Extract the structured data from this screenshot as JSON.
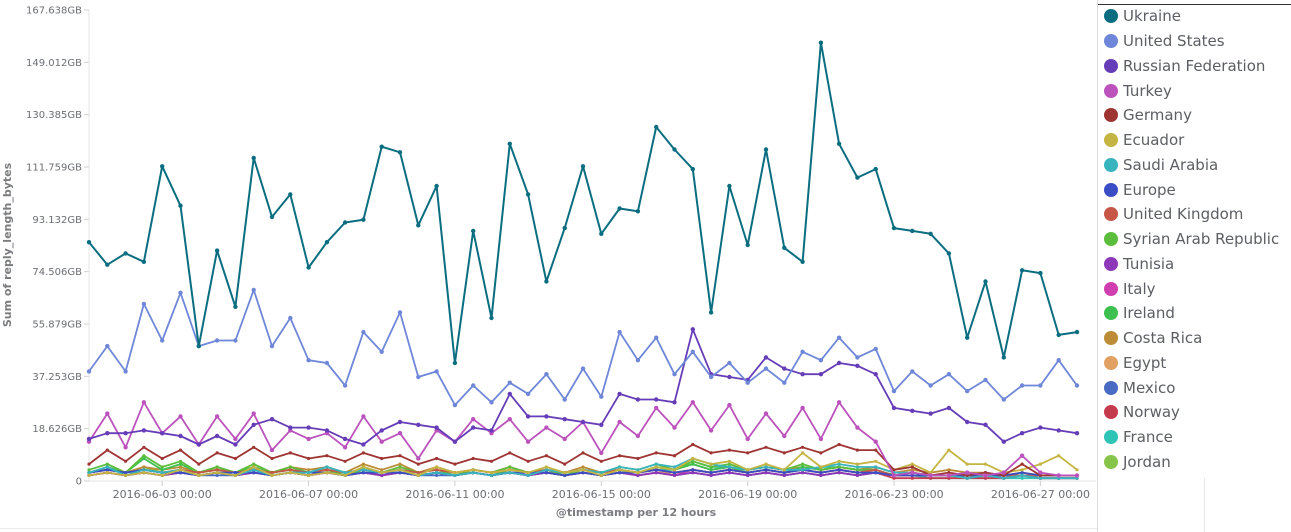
{
  "chart_data": {
    "type": "line",
    "xlabel": "@timestamp per 12 hours",
    "ylabel": "Sum of reply_length_bytes",
    "ylim": [
      0,
      167.638
    ],
    "y_ticks": [
      "0",
      "18.626GB",
      "37.253GB",
      "55.879GB",
      "74.506GB",
      "93.132GB",
      "111.759GB",
      "130.385GB",
      "149.012GB",
      "167.638GB"
    ],
    "y_tick_values": [
      0,
      18.626,
      37.253,
      55.879,
      74.506,
      93.132,
      111.759,
      130.385,
      149.012,
      167.638
    ],
    "x_ticks": [
      "2016-06-03 00:00",
      "2016-06-07 00:00",
      "2016-06-11 00:00",
      "2016-06-15 00:00",
      "2016-06-19 00:00",
      "2016-06-23 00:00",
      "2016-06-27 00:00"
    ],
    "x_tick_index": [
      4,
      12,
      20,
      28,
      36,
      44,
      52
    ],
    "x_count": 55,
    "series": [
      {
        "name": "Ukraine",
        "color": "#0b6e80",
        "values": [
          85,
          77,
          81,
          78,
          112,
          98,
          48,
          82,
          62,
          115,
          94,
          102,
          76,
          85,
          92,
          93,
          119,
          117,
          91,
          105,
          42,
          89,
          58,
          120,
          102,
          71,
          90,
          112,
          88,
          97,
          96,
          126,
          118,
          111,
          60,
          105,
          84,
          118,
          83,
          78,
          156,
          120,
          108,
          111,
          90,
          89,
          88,
          81,
          51,
          71,
          44,
          75,
          74,
          52,
          53
        ]
      },
      {
        "name": "United States",
        "color": "#6f87d8",
        "values": [
          39,
          48,
          39,
          63,
          50,
          67,
          48,
          50,
          50,
          68,
          48,
          58,
          43,
          42,
          34,
          53,
          46,
          60,
          37,
          39,
          27,
          34,
          28,
          35,
          31,
          38,
          29,
          40,
          30,
          53,
          43,
          51,
          38,
          46,
          37,
          42,
          35,
          40,
          35,
          46,
          43,
          51,
          44,
          47,
          32,
          39,
          34,
          38,
          32,
          36,
          29,
          34,
          34,
          43,
          34
        ]
      },
      {
        "name": "Russian Federation",
        "color": "#663db8",
        "values": [
          15,
          17,
          17,
          18,
          17,
          16,
          13,
          16,
          13,
          20,
          22,
          19,
          19,
          18,
          15,
          13,
          18,
          21,
          20,
          19,
          14,
          19,
          18,
          31,
          23,
          23,
          22,
          21,
          20,
          31,
          29,
          29,
          28,
          54,
          38,
          37,
          36,
          44,
          40,
          38,
          38,
          42,
          41,
          38,
          26,
          25,
          24,
          26,
          21,
          20,
          14,
          17,
          19,
          18,
          17
        ]
      },
      {
        "name": "Turkey",
        "color": "#bc52bc",
        "values": [
          14,
          24,
          12,
          28,
          17,
          23,
          13,
          23,
          15,
          24,
          11,
          18,
          15,
          17,
          12,
          23,
          14,
          17,
          8,
          18,
          14,
          22,
          17,
          22,
          14,
          19,
          15,
          21,
          10,
          21,
          16,
          26,
          19,
          28,
          18,
          27,
          15,
          24,
          16,
          26,
          15,
          28,
          19,
          14,
          2,
          3,
          2,
          2,
          3,
          2,
          3,
          9,
          3,
          2,
          2
        ]
      },
      {
        "name": "Germany",
        "color": "#9e3533",
        "values": [
          6,
          11,
          7,
          12,
          8,
          11,
          6,
          10,
          8,
          12,
          8,
          10,
          8,
          9,
          7,
          10,
          8,
          9,
          6,
          8,
          6,
          8,
          7,
          10,
          7,
          9,
          6,
          10,
          7,
          9,
          8,
          10,
          9,
          13,
          10,
          11,
          10,
          12,
          10,
          12,
          10,
          13,
          11,
          11,
          4,
          5,
          2,
          3,
          2,
          3,
          2,
          6,
          2,
          2,
          2
        ]
      },
      {
        "name": "Ecuador",
        "color": "#c4b542",
        "values": [
          2,
          3,
          2,
          3,
          2,
          4,
          2,
          3,
          2,
          5,
          2,
          3,
          2,
          3,
          2,
          5,
          3,
          4,
          2,
          5,
          3,
          4,
          3,
          4,
          3,
          5,
          3,
          4,
          2,
          4,
          3,
          5,
          4,
          8,
          6,
          7,
          4,
          6,
          4,
          10,
          5,
          7,
          6,
          7,
          4,
          6,
          3,
          11,
          6,
          6,
          3,
          4,
          6,
          9,
          4
        ]
      },
      {
        "name": "Saudi Arabia",
        "color": "#38b4be",
        "values": [
          3,
          5,
          2,
          4,
          3,
          4,
          2,
          3,
          2,
          4,
          2,
          3,
          3,
          5,
          3,
          4,
          3,
          4,
          2,
          3,
          2,
          3,
          2,
          3,
          2,
          4,
          3,
          4,
          3,
          5,
          4,
          6,
          5,
          8,
          6,
          5,
          4,
          5,
          4,
          4,
          5,
          6,
          5,
          5,
          3,
          3,
          2,
          2,
          1,
          2,
          1,
          2,
          1,
          1,
          1
        ]
      },
      {
        "name": "Europe",
        "color": "#3a4dc4",
        "values": [
          3,
          4,
          3,
          4,
          3,
          3,
          2,
          3,
          3,
          3,
          2,
          3,
          3,
          3,
          2,
          3,
          3,
          3,
          2,
          3,
          2,
          3,
          2,
          3,
          3,
          3,
          2,
          3,
          2,
          3,
          3,
          4,
          3,
          4,
          3,
          4,
          3,
          4,
          3,
          4,
          3,
          4,
          3,
          3,
          2,
          2,
          2,
          2,
          2,
          2,
          2,
          3,
          2,
          2,
          2
        ]
      },
      {
        "name": "United Kingdom",
        "color": "#c75646",
        "values": [
          3,
          4,
          3,
          4,
          3,
          4,
          3,
          4,
          3,
          4,
          3,
          4,
          3,
          4,
          3,
          4,
          3,
          4,
          3,
          4,
          3,
          4,
          3,
          4,
          3,
          4,
          3,
          4,
          3,
          4,
          3,
          4,
          3,
          4,
          3,
          4,
          3,
          4,
          3,
          4,
          3,
          4,
          3,
          4,
          2,
          3,
          2,
          2,
          2,
          2,
          2,
          2,
          2,
          2,
          2
        ]
      },
      {
        "name": "Syrian Arab Republic",
        "color": "#5cbd3c",
        "values": [
          4,
          6,
          3,
          9,
          5,
          7,
          3,
          5,
          3,
          6,
          3,
          5,
          3,
          4,
          2,
          5,
          3,
          5,
          3,
          4,
          2,
          4,
          3,
          5,
          3,
          4,
          2,
          4,
          3,
          5,
          4,
          6,
          4,
          7,
          5,
          6,
          4,
          5,
          4,
          6,
          4,
          5,
          4,
          4,
          2,
          3,
          2,
          2,
          2,
          2,
          2,
          2,
          2,
          2,
          2
        ]
      },
      {
        "name": "Tunisia",
        "color": "#8d38b8",
        "values": [
          2,
          3,
          2,
          3,
          2,
          3,
          2,
          3,
          2,
          3,
          2,
          3,
          2,
          3,
          2,
          3,
          2,
          3,
          2,
          3,
          2,
          3,
          2,
          3,
          2,
          3,
          2,
          3,
          2,
          3,
          2,
          3,
          2,
          3,
          2,
          3,
          2,
          3,
          2,
          3,
          2,
          3,
          2,
          3,
          2,
          2,
          2,
          2,
          2,
          2,
          2,
          2,
          2,
          2,
          2
        ]
      },
      {
        "name": "Italy",
        "color": "#cf3fb0",
        "values": [
          2,
          3,
          2,
          3,
          2,
          3,
          2,
          3,
          2,
          3,
          2,
          3,
          2,
          3,
          2,
          3,
          2,
          3,
          2,
          3,
          2,
          3,
          2,
          3,
          2,
          3,
          2,
          3,
          2,
          3,
          2,
          3,
          2,
          4,
          3,
          4,
          3,
          4,
          3,
          4,
          3,
          4,
          3,
          3,
          2,
          2,
          2,
          2,
          1,
          2,
          1,
          2,
          1,
          1,
          1
        ]
      },
      {
        "name": "Ireland",
        "color": "#3dc050",
        "values": [
          3,
          5,
          3,
          8,
          4,
          6,
          3,
          5,
          3,
          5,
          3,
          4,
          3,
          4,
          2,
          4,
          3,
          4,
          2,
          3,
          2,
          3,
          2,
          4,
          3,
          4,
          2,
          3,
          2,
          4,
          3,
          5,
          4,
          6,
          4,
          5,
          3,
          4,
          3,
          5,
          4,
          5,
          4,
          4,
          2,
          2,
          2,
          2,
          1,
          2,
          1,
          2,
          1,
          1,
          1
        ]
      },
      {
        "name": "Costa Rica",
        "color": "#bd8c36",
        "values": [
          3,
          4,
          3,
          5,
          4,
          5,
          3,
          4,
          3,
          5,
          3,
          5,
          4,
          5,
          3,
          6,
          4,
          6,
          3,
          5,
          3,
          4,
          3,
          5,
          3,
          4,
          3,
          5,
          3,
          4,
          3,
          5,
          4,
          6,
          4,
          5,
          4,
          5,
          4,
          5,
          4,
          5,
          4,
          5,
          3,
          4,
          3,
          4,
          3,
          3,
          2,
          3,
          2,
          2,
          2
        ]
      },
      {
        "name": "Egypt",
        "color": "#e0a163",
        "values": [
          2,
          3,
          2,
          3,
          2,
          3,
          2,
          3,
          2,
          3,
          2,
          3,
          2,
          3,
          2,
          3,
          2,
          3,
          2,
          3,
          2,
          3,
          2,
          3,
          2,
          3,
          2,
          3,
          2,
          3,
          2,
          3,
          3,
          4,
          3,
          4,
          3,
          4,
          3,
          4,
          3,
          4,
          3,
          3,
          2,
          2,
          2,
          2,
          2,
          2,
          2,
          2,
          2,
          2,
          2
        ]
      },
      {
        "name": "Mexico",
        "color": "#4a6bc4",
        "values": [
          2,
          3,
          2,
          3,
          2,
          3,
          2,
          2,
          2,
          3,
          2,
          3,
          2,
          3,
          2,
          3,
          2,
          3,
          2,
          2,
          2,
          3,
          2,
          3,
          2,
          3,
          2,
          3,
          2,
          3,
          2,
          3,
          2,
          3,
          2,
          3,
          2,
          3,
          2,
          3,
          2,
          3,
          2,
          3,
          2,
          2,
          2,
          2,
          2,
          2,
          2,
          2,
          2,
          2,
          2
        ]
      },
      {
        "name": "Norway",
        "color": "#c63a4e",
        "values": [
          2,
          3,
          2,
          3,
          2,
          3,
          2,
          3,
          2,
          3,
          2,
          3,
          2,
          3,
          2,
          3,
          2,
          3,
          2,
          3,
          2,
          3,
          2,
          3,
          2,
          3,
          2,
          3,
          2,
          3,
          2,
          3,
          2,
          3,
          2,
          3,
          2,
          3,
          2,
          3,
          2,
          3,
          2,
          3,
          1,
          1,
          1,
          1,
          1,
          1,
          1,
          2,
          1,
          1,
          1
        ]
      },
      {
        "name": "France",
        "color": "#2ec4b6",
        "values": [
          3,
          4,
          3,
          4,
          3,
          3,
          2,
          3,
          2,
          4,
          2,
          3,
          3,
          5,
          3,
          4,
          3,
          4,
          2,
          3,
          2,
          3,
          2,
          3,
          2,
          3,
          2,
          3,
          2,
          3,
          3,
          4,
          4,
          7,
          5,
          5,
          4,
          5,
          4,
          4,
          5,
          5,
          4,
          4,
          2,
          2,
          1,
          1,
          1,
          1,
          1,
          1,
          1,
          1,
          1
        ]
      },
      {
        "name": "Jordan",
        "color": "#86c44a",
        "values": [
          3,
          4,
          3,
          5,
          3,
          4,
          3,
          4,
          3,
          4,
          3,
          4,
          3,
          4,
          2,
          4,
          3,
          4,
          2,
          3,
          2,
          3,
          2,
          3,
          2,
          3,
          2,
          3,
          2,
          3,
          3,
          4,
          3,
          4,
          3,
          4,
          3,
          4,
          3,
          4,
          3,
          4,
          3,
          3,
          2,
          2,
          2,
          2,
          2,
          2,
          2,
          2,
          2,
          2,
          2
        ]
      }
    ]
  }
}
